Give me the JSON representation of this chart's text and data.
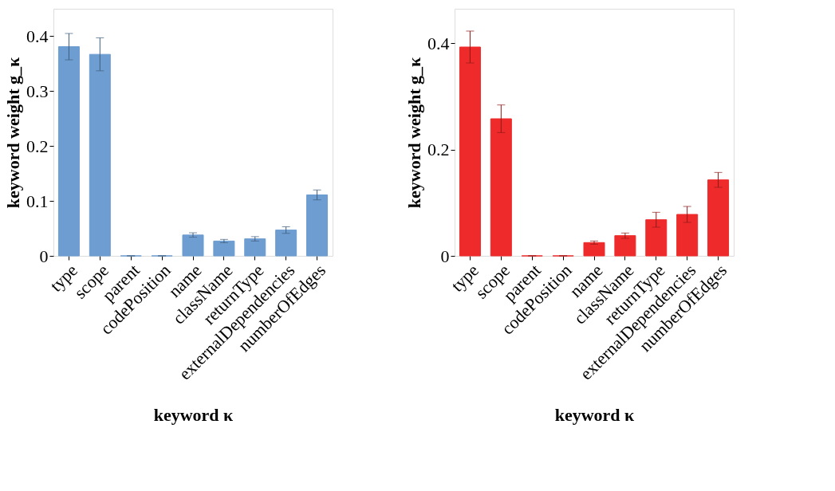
{
  "chart_data": [
    {
      "type": "bar",
      "xlabel": "keyword κ",
      "ylabel": "keyword weight g_κ",
      "categories": [
        "type",
        "scope",
        "parent",
        "codePosition",
        "name",
        "className",
        "returnType",
        "externalDependencies",
        "numberOfEdges"
      ],
      "series": [
        {
          "color": "#6d9dd1",
          "values": [
            0.381,
            0.367,
            0,
            0,
            0.038,
            0.027,
            0.031,
            0.047,
            0.111
          ],
          "errors": [
            0.024,
            0.03,
            0,
            0,
            0.004,
            0.003,
            0.004,
            0.006,
            0.009
          ]
        }
      ],
      "ylim": [
        0,
        0.45
      ],
      "yticks": [
        0,
        0.1,
        0.2,
        0.3,
        0.4
      ],
      "grid": false
    },
    {
      "type": "bar",
      "xlabel": "keyword κ",
      "ylabel": "keyword weight g_κ",
      "categories": [
        "type",
        "scope",
        "parent",
        "codePosition",
        "name",
        "className",
        "returnType",
        "externalDependencies",
        "numberOfEdges"
      ],
      "series": [
        {
          "color": "#ee2a2a",
          "values": [
            0.393,
            0.258,
            0,
            0,
            0.025,
            0.038,
            0.068,
            0.078,
            0.143
          ],
          "errors": [
            0.03,
            0.026,
            0,
            0,
            0.003,
            0.005,
            0.014,
            0.015,
            0.014
          ]
        }
      ],
      "ylim": [
        0,
        0.465
      ],
      "yticks": [
        0,
        0.2,
        0.4
      ],
      "grid": false
    }
  ]
}
